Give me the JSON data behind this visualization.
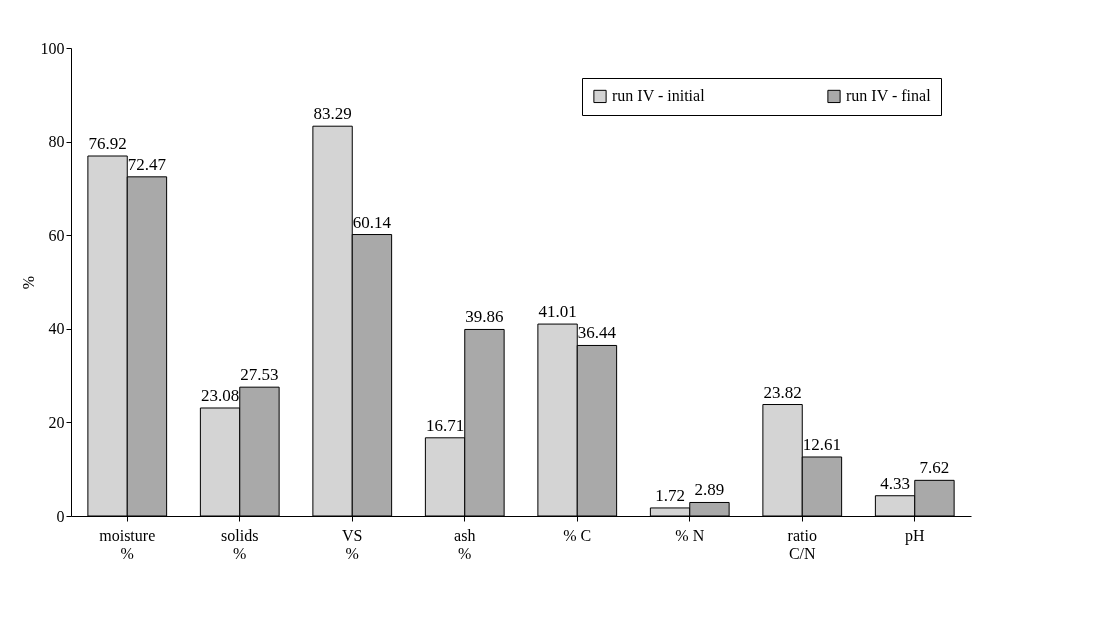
{
  "chart_data": {
    "type": "bar",
    "ylabel": "%",
    "categories": [
      "moisture\n%",
      "solids\n%",
      "VS\n%",
      "ash\n%",
      "% C",
      "% N",
      "ratio\nC/N",
      "pH"
    ],
    "series": [
      {
        "name": "run IV - initial",
        "color": "#d4d4d4",
        "values": [
          76.92,
          23.08,
          83.29,
          16.71,
          41.01,
          1.72,
          23.82,
          4.33
        ]
      },
      {
        "name": "run IV - final",
        "color": "#a9a9a9",
        "values": [
          72.47,
          27.53,
          60.14,
          39.86,
          36.44,
          2.89,
          12.61,
          7.62
        ]
      }
    ],
    "ylim": [
      0,
      100
    ],
    "yticks": [
      0,
      20,
      40,
      60,
      80,
      100
    ],
    "grid": false,
    "legend": "top right",
    "data_labels": true
  }
}
